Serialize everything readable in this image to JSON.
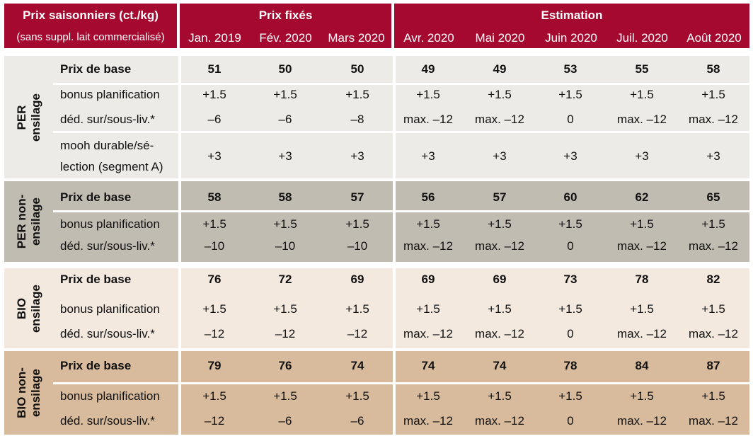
{
  "header": {
    "title": "Prix saisonniers (ct./kg)",
    "subtitle": "(sans suppl. lait commercialisé)",
    "fixed_label": "Prix fixés",
    "estimate_label": "Estimation",
    "months": [
      "Jan. 2019",
      "Fév. 2020",
      "Mars 2020",
      "Avr. 2020",
      "Mai 2020",
      "Juin 2020",
      "Juil. 2020",
      "Août 2020"
    ]
  },
  "colors": {
    "header_bg": "#a5092f",
    "per_ensilage_bg": "#ecebe7",
    "per_non_ensilage_bg": "#c1bcb1",
    "bio_ensilage_bg": "#f3e9df",
    "bio_non_ensilage_bg": "#d8bb9c"
  },
  "groups": [
    {
      "label_line1": "PER",
      "label_line2": "ensilage",
      "rows": [
        {
          "label": "Prix de base",
          "values": [
            "51",
            "50",
            "50",
            "49",
            "49",
            "53",
            "55",
            "58"
          ]
        },
        {
          "label": "bonus planification",
          "values": [
            "+1.5",
            "+1.5",
            "+1.5",
            "+1.5",
            "+1.5",
            "+1.5",
            "+1.5",
            "+1.5"
          ]
        },
        {
          "label": "déd. sur/sous-liv.*",
          "values": [
            "–6",
            "–6",
            "–8",
            "max. –12",
            "max. –12",
            "0",
            "max. –12",
            "max. –12"
          ]
        },
        {
          "label_line1": "mooh durable/sé-",
          "label_line2": "lection (segment A)",
          "values": [
            "+3",
            "+3",
            "+3",
            "+3",
            "+3",
            "+3",
            "+3",
            "+3"
          ]
        }
      ]
    },
    {
      "label_line1": "PER non-",
      "label_line2": "ensilage",
      "rows": [
        {
          "label": "Prix de base",
          "values": [
            "58",
            "58",
            "57",
            "56",
            "57",
            "60",
            "62",
            "65"
          ]
        },
        {
          "label": "bonus planification",
          "values": [
            "+1.5",
            "+1.5",
            "+1.5",
            "+1.5",
            "+1.5",
            "+1.5",
            "+1.5",
            "+1.5"
          ]
        },
        {
          "label": "déd. sur/sous-liv.*",
          "values": [
            "–10",
            "–10",
            "–10",
            "max. –12",
            "max. –12",
            "0",
            "max. –12",
            "max. –12"
          ]
        }
      ]
    },
    {
      "label_line1": "BIO",
      "label_line2": "ensilage",
      "rows": [
        {
          "label": "Prix de base",
          "values": [
            "76",
            "72",
            "69",
            "69",
            "69",
            "73",
            "78",
            "82"
          ]
        },
        {
          "label": "bonus planification",
          "values": [
            "+1.5",
            "+1.5",
            "+1.5",
            "+1.5",
            "+1.5",
            "+1.5",
            "+1.5",
            "+1.5"
          ]
        },
        {
          "label": "déd. sur/sous-liv.*",
          "values": [
            "–12",
            "–12",
            "–12",
            "max. –12",
            "max. –12",
            "0",
            "max. –12",
            "max. –12"
          ]
        }
      ]
    },
    {
      "label_line1": "BIO non-",
      "label_line2": "ensilage",
      "rows": [
        {
          "label": "Prix de base",
          "values": [
            "79",
            "76",
            "74",
            "74",
            "74",
            "78",
            "84",
            "87"
          ]
        },
        {
          "label": "bonus planification",
          "values": [
            "+1.5",
            "+1.5",
            "+1.5",
            "+1.5",
            "+1.5",
            "+1.5",
            "+1.5",
            "+1.5"
          ]
        },
        {
          "label": "déd. sur/sous-liv.*",
          "values": [
            "–12",
            "–6",
            "–6",
            "max. –12",
            "max. –12",
            "0",
            "max. –12",
            "max. –12"
          ]
        }
      ]
    }
  ]
}
